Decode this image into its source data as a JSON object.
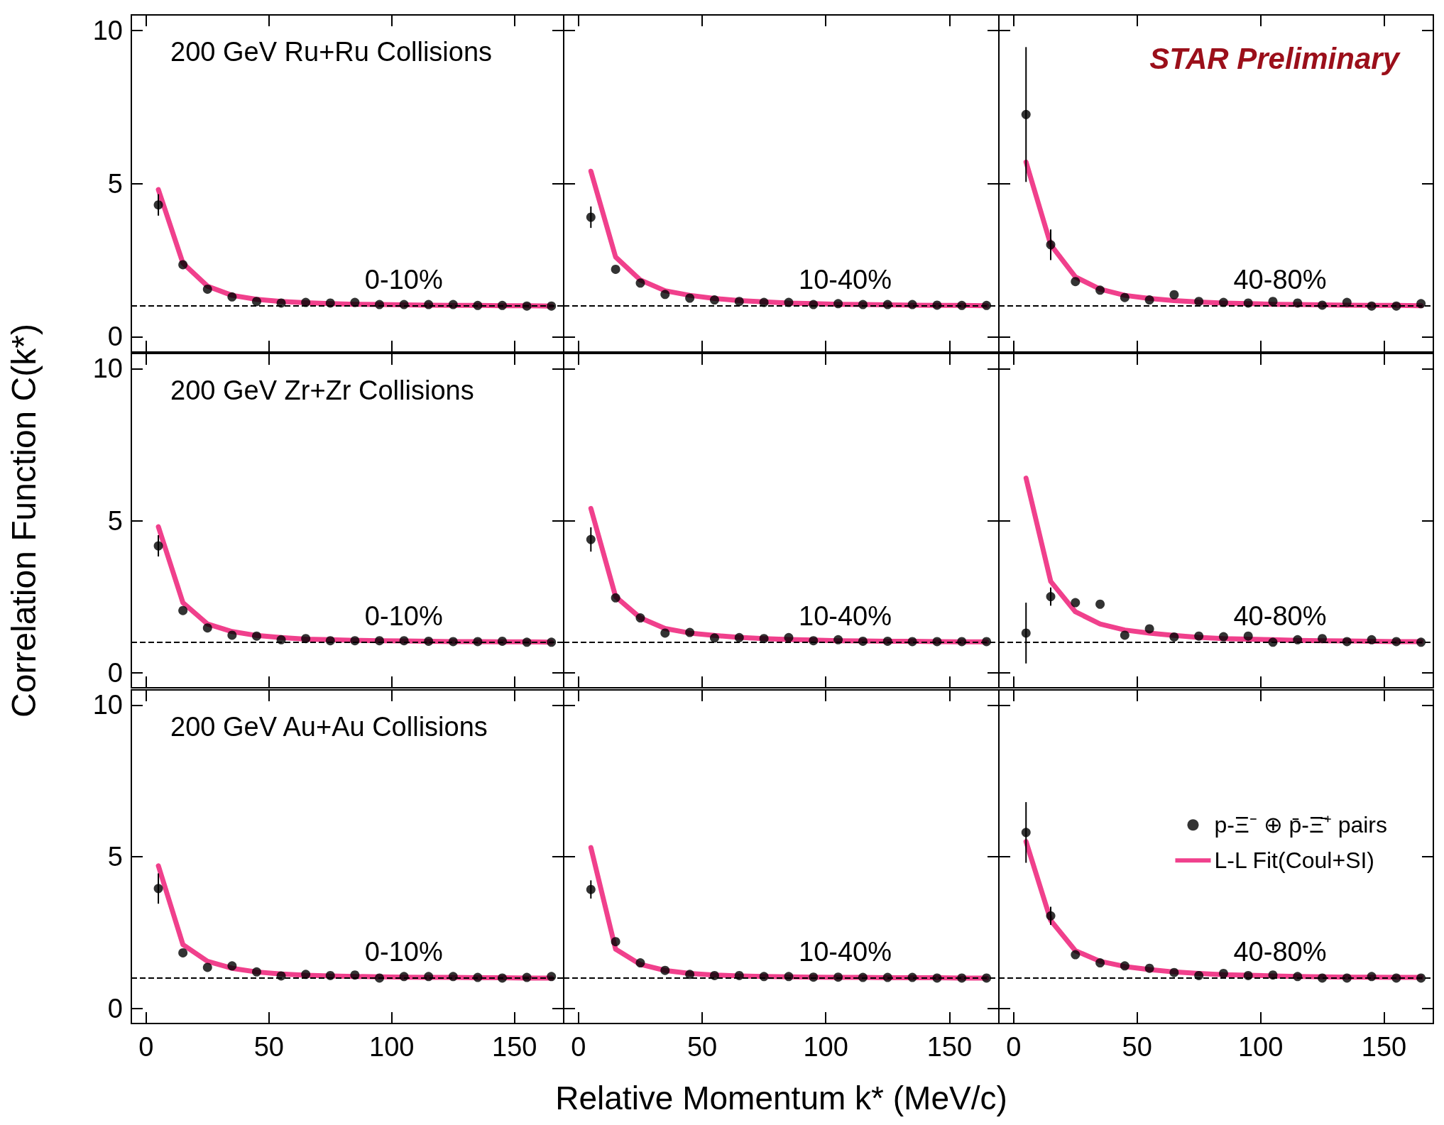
{
  "chart_data": [
    {
      "type": "scatter",
      "title": "200 GeV Ru+Ru Collisions",
      "annotations": [
        "0-10%"
      ],
      "x": [
        5,
        15,
        25,
        35,
        45,
        55,
        65,
        75,
        85,
        95,
        105,
        115,
        125,
        135,
        145,
        155,
        165
      ],
      "xlim": [
        -6,
        170
      ],
      "xticks": [
        0,
        50,
        100,
        150
      ],
      "ylim": [
        -0.5,
        10.5
      ],
      "yticks": [
        0,
        5,
        10
      ],
      "tick_labels": "y",
      "ref_lines": [
        {
          "axis": "y",
          "value": 1,
          "line_style": "dashed",
          "color": "#000000"
        }
      ],
      "series": [
        {
          "color": "#000000",
          "marker": "circle",
          "values": [
            4.3,
            2.35,
            1.55,
            1.3,
            1.15,
            1.1,
            1.12,
            1.1,
            1.12,
            1.05,
            1.05,
            1.05,
            1.05,
            1.02,
            1.02,
            1.0,
            1.0
          ],
          "errors": [
            0.35,
            null,
            null,
            null,
            null,
            null,
            null,
            null,
            null,
            null,
            null,
            null,
            null,
            null,
            null,
            null,
            null
          ]
        },
        {
          "type": "line",
          "color": "#f0408c",
          "marker": "none",
          "values": [
            4.8,
            2.4,
            1.65,
            1.35,
            1.22,
            1.15,
            1.11,
            1.08,
            1.06,
            1.05,
            1.04,
            1.03,
            1.02,
            1.02,
            1.01,
            1.01,
            1.0
          ]
        }
      ]
    },
    {
      "type": "scatter",
      "annotations": [
        "10-40%"
      ],
      "x": [
        5,
        15,
        25,
        35,
        45,
        55,
        65,
        75,
        85,
        95,
        105,
        115,
        125,
        135,
        145,
        155,
        165
      ],
      "xlim": [
        -6,
        170
      ],
      "xticks": [
        0,
        50,
        100,
        150
      ],
      "ylim": [
        -0.5,
        10.5
      ],
      "yticks": [
        0,
        5,
        10
      ],
      "tick_labels": false,
      "ref_lines": [
        {
          "axis": "y",
          "value": 1,
          "line_style": "dashed",
          "color": "#000000"
        }
      ],
      "series": [
        {
          "color": "#000000",
          "marker": "circle",
          "values": [
            3.9,
            2.2,
            1.75,
            1.38,
            1.26,
            1.2,
            1.15,
            1.12,
            1.12,
            1.05,
            1.08,
            1.05,
            1.05,
            1.05,
            1.03,
            1.02,
            1.02
          ],
          "errors": [
            0.35,
            null,
            null,
            null,
            null,
            null,
            null,
            null,
            null,
            null,
            null,
            null,
            null,
            null,
            null,
            null,
            null
          ]
        },
        {
          "type": "line",
          "color": "#f0408c",
          "marker": "none",
          "values": [
            5.4,
            2.6,
            1.85,
            1.5,
            1.35,
            1.25,
            1.18,
            1.14,
            1.1,
            1.08,
            1.06,
            1.05,
            1.04,
            1.03,
            1.02,
            1.02,
            1.01
          ]
        }
      ]
    },
    {
      "type": "scatter",
      "annotations": [
        "40-80%",
        "STAR Preliminary"
      ],
      "x": [
        5,
        15,
        25,
        35,
        45,
        55,
        65,
        75,
        85,
        95,
        105,
        115,
        125,
        135,
        145,
        155,
        165
      ],
      "xlim": [
        -6,
        170
      ],
      "xticks": [
        0,
        50,
        100,
        150
      ],
      "ylim": [
        -0.5,
        10.5
      ],
      "yticks": [
        0,
        5,
        10
      ],
      "tick_labels": false,
      "ref_lines": [
        {
          "axis": "y",
          "value": 1,
          "line_style": "dashed",
          "color": "#000000"
        }
      ],
      "series": [
        {
          "color": "#000000",
          "marker": "circle",
          "values": [
            7.25,
            3.0,
            1.8,
            1.52,
            1.28,
            1.2,
            1.37,
            1.15,
            1.12,
            1.1,
            1.15,
            1.1,
            1.03,
            1.12,
            1.0,
            1.0,
            1.08
          ],
          "errors": [
            2.2,
            0.5,
            null,
            null,
            null,
            null,
            null,
            null,
            null,
            null,
            null,
            null,
            null,
            null,
            null,
            null,
            null
          ]
        },
        {
          "type": "line",
          "color": "#f0408c",
          "marker": "none",
          "values": [
            5.7,
            3.0,
            1.95,
            1.55,
            1.35,
            1.25,
            1.18,
            1.13,
            1.1,
            1.08,
            1.06,
            1.05,
            1.04,
            1.03,
            1.02,
            1.02,
            1.01
          ]
        }
      ]
    },
    {
      "type": "scatter",
      "title": "200 GeV Zr+Zr Collisions",
      "ylabel": "Correlation Function C(k*)",
      "annotations": [
        "0-10%"
      ],
      "x": [
        5,
        15,
        25,
        35,
        45,
        55,
        65,
        75,
        85,
        95,
        105,
        115,
        125,
        135,
        145,
        155,
        165
      ],
      "xlim": [
        -6,
        170
      ],
      "xticks": [
        0,
        50,
        100,
        150
      ],
      "ylim": [
        -0.5,
        10.5
      ],
      "yticks": [
        0,
        5,
        10
      ],
      "tick_labels": "y",
      "ref_lines": [
        {
          "axis": "y",
          "value": 1,
          "line_style": "dashed",
          "color": "#000000"
        }
      ],
      "series": [
        {
          "color": "#000000",
          "marker": "circle",
          "values": [
            4.17,
            2.04,
            1.47,
            1.23,
            1.2,
            1.08,
            1.12,
            1.05,
            1.05,
            1.05,
            1.05,
            1.03,
            1.02,
            1.02,
            1.03,
            1.0,
            1.0
          ],
          "errors": [
            0.35,
            null,
            null,
            null,
            null,
            null,
            null,
            null,
            null,
            null,
            null,
            null,
            null,
            null,
            null,
            null,
            null
          ]
        },
        {
          "type": "line",
          "color": "#f0408c",
          "marker": "none",
          "values": [
            4.8,
            2.3,
            1.6,
            1.35,
            1.22,
            1.15,
            1.1,
            1.08,
            1.06,
            1.05,
            1.04,
            1.03,
            1.02,
            1.02,
            1.01,
            1.01,
            1.0
          ]
        }
      ]
    },
    {
      "type": "scatter",
      "annotations": [
        "10-40%"
      ],
      "x": [
        5,
        15,
        25,
        35,
        45,
        55,
        65,
        75,
        85,
        95,
        105,
        115,
        125,
        135,
        145,
        155,
        165
      ],
      "xlim": [
        -6,
        170
      ],
      "xticks": [
        0,
        50,
        100,
        150
      ],
      "ylim": [
        -0.5,
        10.5
      ],
      "yticks": [
        0,
        5,
        10
      ],
      "tick_labels": false,
      "ref_lines": [
        {
          "axis": "y",
          "value": 1,
          "line_style": "dashed",
          "color": "#000000"
        }
      ],
      "series": [
        {
          "color": "#000000",
          "marker": "circle",
          "values": [
            4.38,
            2.46,
            1.8,
            1.3,
            1.32,
            1.14,
            1.15,
            1.12,
            1.15,
            1.05,
            1.08,
            1.03,
            1.03,
            1.02,
            1.02,
            1.02,
            1.02
          ],
          "errors": [
            0.4,
            null,
            null,
            null,
            null,
            null,
            null,
            null,
            null,
            null,
            null,
            null,
            null,
            null,
            null,
            null,
            null
          ]
        },
        {
          "type": "line",
          "color": "#f0408c",
          "marker": "none",
          "values": [
            5.4,
            2.5,
            1.8,
            1.45,
            1.3,
            1.22,
            1.16,
            1.12,
            1.09,
            1.07,
            1.05,
            1.04,
            1.03,
            1.03,
            1.02,
            1.01,
            1.01
          ]
        }
      ]
    },
    {
      "type": "scatter",
      "annotations": [
        "40-80%"
      ],
      "x": [
        5,
        15,
        25,
        35,
        45,
        55,
        65,
        75,
        85,
        95,
        105,
        115,
        125,
        135,
        145,
        155,
        165
      ],
      "xlim": [
        -6,
        170
      ],
      "xticks": [
        0,
        50,
        100,
        150
      ],
      "ylim": [
        -0.5,
        10.5
      ],
      "yticks": [
        0,
        5,
        10
      ],
      "tick_labels": false,
      "ref_lines": [
        {
          "axis": "y",
          "value": 1,
          "line_style": "dashed",
          "color": "#000000"
        }
      ],
      "series": [
        {
          "color": "#000000",
          "marker": "circle",
          "values": [
            1.3,
            2.5,
            2.3,
            2.25,
            1.23,
            1.44,
            1.17,
            1.2,
            1.18,
            1.2,
            1.0,
            1.08,
            1.12,
            1.02,
            1.08,
            1.02,
            1.0
          ],
          "errors": [
            1.0,
            0.3,
            null,
            null,
            null,
            null,
            null,
            null,
            null,
            null,
            null,
            null,
            null,
            null,
            null,
            null,
            null
          ]
        },
        {
          "type": "line",
          "color": "#f0408c",
          "marker": "none",
          "values": [
            6.4,
            3.0,
            2.0,
            1.6,
            1.4,
            1.3,
            1.22,
            1.16,
            1.12,
            1.1,
            1.08,
            1.06,
            1.05,
            1.04,
            1.03,
            1.02,
            1.02
          ]
        }
      ]
    },
    {
      "type": "scatter",
      "title": "200 GeV Au+Au Collisions",
      "annotations": [
        "0-10%"
      ],
      "x": [
        5,
        15,
        25,
        35,
        45,
        55,
        65,
        75,
        85,
        95,
        105,
        115,
        125,
        135,
        145,
        155,
        165
      ],
      "xlim": [
        -6,
        170
      ],
      "xticks": [
        0,
        50,
        100,
        150
      ],
      "ylim": [
        -0.5,
        10.5
      ],
      "yticks": [
        0,
        5,
        10
      ],
      "ref_lines": [
        {
          "axis": "y",
          "value": 1,
          "line_style": "dashed",
          "color": "#000000"
        }
      ],
      "series": [
        {
          "color": "#000000",
          "marker": "circle",
          "values": [
            3.95,
            1.83,
            1.35,
            1.4,
            1.2,
            1.07,
            1.12,
            1.08,
            1.1,
            1.0,
            1.05,
            1.05,
            1.05,
            1.02,
            1.0,
            1.02,
            1.05
          ],
          "errors": [
            0.5,
            null,
            null,
            null,
            null,
            null,
            null,
            null,
            null,
            null,
            null,
            null,
            null,
            null,
            null,
            null,
            null
          ]
        },
        {
          "type": "line",
          "color": "#f0408c",
          "marker": "none",
          "values": [
            4.7,
            2.1,
            1.55,
            1.32,
            1.2,
            1.13,
            1.09,
            1.07,
            1.05,
            1.04,
            1.03,
            1.02,
            1.02,
            1.01,
            1.01,
            1.0,
            1.0
          ]
        }
      ]
    },
    {
      "type": "scatter",
      "xlabel": "Relative Momentum k* (MeV/c)",
      "annotations": [
        "10-40%"
      ],
      "x": [
        5,
        15,
        25,
        35,
        45,
        55,
        65,
        75,
        85,
        95,
        105,
        115,
        125,
        135,
        145,
        155,
        165
      ],
      "xlim": [
        -6,
        170
      ],
      "xticks": [
        0,
        50,
        100,
        150
      ],
      "ylim": [
        -0.5,
        10.5
      ],
      "yticks": [
        0,
        5,
        10
      ],
      "tick_labels": "x",
      "ref_lines": [
        {
          "axis": "y",
          "value": 1,
          "line_style": "dashed",
          "color": "#000000"
        }
      ],
      "series": [
        {
          "color": "#000000",
          "marker": "circle",
          "values": [
            3.92,
            2.2,
            1.5,
            1.25,
            1.12,
            1.08,
            1.08,
            1.05,
            1.05,
            1.03,
            1.03,
            1.02,
            1.02,
            1.02,
            1.0,
            1.0,
            1.0
          ],
          "errors": [
            0.3,
            null,
            null,
            null,
            null,
            null,
            null,
            null,
            null,
            null,
            null,
            null,
            null,
            null,
            null,
            null,
            null
          ]
        },
        {
          "type": "line",
          "color": "#f0408c",
          "marker": "none",
          "values": [
            5.3,
            1.95,
            1.45,
            1.25,
            1.15,
            1.1,
            1.07,
            1.05,
            1.04,
            1.03,
            1.02,
            1.02,
            1.01,
            1.01,
            1.01,
            1.0,
            1.0
          ]
        }
      ]
    },
    {
      "type": "scatter",
      "annotations": [
        "40-80%"
      ],
      "legend": "right",
      "x": [
        5,
        15,
        25,
        35,
        45,
        55,
        65,
        75,
        85,
        95,
        105,
        115,
        125,
        135,
        145,
        155,
        165
      ],
      "xlim": [
        -6,
        170
      ],
      "xticks": [
        0,
        50,
        100,
        150
      ],
      "ylim": [
        -0.5,
        10.5
      ],
      "yticks": [
        0,
        5,
        10
      ],
      "tick_labels": "x",
      "ref_lines": [
        {
          "axis": "y",
          "value": 1,
          "line_style": "dashed",
          "color": "#000000"
        }
      ],
      "series": [
        {
          "name": "p-Ξ⁻ ⊕ p̄-Ξ̄⁺ pairs",
          "color": "#000000",
          "marker": "circle",
          "values": [
            5.8,
            3.05,
            1.77,
            1.5,
            1.4,
            1.32,
            1.18,
            1.08,
            1.15,
            1.08,
            1.1,
            1.05,
            1.0,
            1.0,
            1.05,
            1.0,
            1.0
          ],
          "errors": [
            1.0,
            0.3,
            null,
            null,
            null,
            null,
            null,
            null,
            null,
            null,
            null,
            null,
            null,
            null,
            null,
            null,
            null
          ]
        },
        {
          "type": "line",
          "name": "L-L Fit(Coul+SI)",
          "color": "#f0408c",
          "marker": "none",
          "values": [
            5.5,
            2.9,
            1.9,
            1.55,
            1.38,
            1.28,
            1.2,
            1.15,
            1.11,
            1.09,
            1.07,
            1.05,
            1.04,
            1.03,
            1.03,
            1.02,
            1.02
          ]
        }
      ]
    }
  ]
}
